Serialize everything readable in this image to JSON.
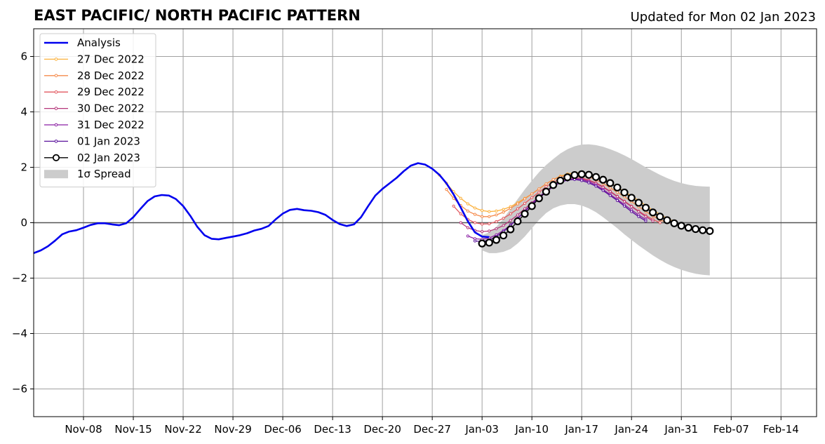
{
  "chart_data": {
    "type": "line",
    "title": "EAST PACIFIC/ NORTH PACIFIC PATTERN",
    "subtitle": "Updated for Mon 02 Jan 2023",
    "xlabel": "",
    "ylabel": "",
    "xlim": [
      "2022-11-01",
      "2023-02-19"
    ],
    "ylim": [
      -7,
      7
    ],
    "grid": true,
    "legend_position": "top-left",
    "x_ticks": [
      {
        "date": "2022-11-08",
        "label": "Nov-08"
      },
      {
        "date": "2022-11-15",
        "label": "Nov-15"
      },
      {
        "date": "2022-11-22",
        "label": "Nov-22"
      },
      {
        "date": "2022-11-29",
        "label": "Nov-29"
      },
      {
        "date": "2022-12-06",
        "label": "Dec-06"
      },
      {
        "date": "2022-12-13",
        "label": "Dec-13"
      },
      {
        "date": "2022-12-20",
        "label": "Dec-20"
      },
      {
        "date": "2022-12-27",
        "label": "Dec-27"
      },
      {
        "date": "2023-01-03",
        "label": "Jan-03"
      },
      {
        "date": "2023-01-10",
        "label": "Jan-10"
      },
      {
        "date": "2023-01-17",
        "label": "Jan-17"
      },
      {
        "date": "2023-01-24",
        "label": "Jan-24"
      },
      {
        "date": "2023-01-31",
        "label": "Jan-31"
      },
      {
        "date": "2023-02-07",
        "label": "Feb-07"
      },
      {
        "date": "2023-02-14",
        "label": "Feb-14"
      }
    ],
    "y_ticks": [
      {
        "value": 6,
        "label": "6"
      },
      {
        "value": 4,
        "label": "4"
      },
      {
        "value": 2,
        "label": "2"
      },
      {
        "value": 0,
        "label": "0"
      },
      {
        "value": -2,
        "label": "−2"
      },
      {
        "value": -4,
        "label": "−4"
      },
      {
        "value": -6,
        "label": "−6"
      }
    ],
    "analysis": {
      "name": "Analysis",
      "color": "#0000ee",
      "start_date": "2022-11-01",
      "values": [
        -1.1,
        -1.0,
        -0.85,
        -0.65,
        -0.42,
        -0.32,
        -0.27,
        -0.18,
        -0.08,
        -0.02,
        -0.02,
        -0.06,
        -0.09,
        -0.02,
        0.2,
        0.5,
        0.78,
        0.95,
        1.0,
        0.98,
        0.85,
        0.6,
        0.25,
        -0.15,
        -0.45,
        -0.58,
        -0.6,
        -0.55,
        -0.5,
        -0.45,
        -0.38,
        -0.28,
        -0.22,
        -0.12,
        0.12,
        0.33,
        0.46,
        0.5,
        0.45,
        0.43,
        0.38,
        0.28,
        0.1,
        -0.05,
        -0.12,
        -0.06,
        0.2,
        0.6,
        0.98,
        1.22,
        1.42,
        1.62,
        1.86,
        2.06,
        2.15,
        2.1,
        1.95,
        1.73,
        1.42,
        1.02,
        0.55,
        0.05,
        -0.35,
        -0.5,
        -0.52
      ]
    },
    "forecasts": [
      {
        "name": "27 Dec 2022",
        "color": "#fbb13c",
        "start_date": "2022-12-28",
        "values": [
          1.72,
          1.42,
          1.12,
          0.88,
          0.68,
          0.53,
          0.44,
          0.4,
          0.42,
          0.48,
          0.58,
          0.72,
          0.88,
          1.04,
          1.22,
          1.4,
          1.56,
          1.68,
          1.76,
          1.8,
          1.8,
          1.76,
          1.68,
          1.58,
          1.44,
          1.28,
          1.12,
          0.96,
          0.8,
          0.62,
          0.45,
          0.3,
          0.16,
          0.04
        ]
      },
      {
        "name": "28 Dec 2022",
        "color": "#f58b4c",
        "start_date": "2022-12-29",
        "values": [
          1.2,
          0.88,
          0.62,
          0.42,
          0.3,
          0.22,
          0.22,
          0.28,
          0.38,
          0.52,
          0.68,
          0.86,
          1.04,
          1.22,
          1.4,
          1.56,
          1.66,
          1.72,
          1.74,
          1.72,
          1.65,
          1.55,
          1.42,
          1.26,
          1.1,
          0.94,
          0.76,
          0.58,
          0.4,
          0.24,
          0.1,
          0.0
        ]
      },
      {
        "name": "29 Dec 2022",
        "color": "#e2585f",
        "start_date": "2022-12-30",
        "values": [
          0.6,
          0.32,
          0.12,
          0.0,
          -0.05,
          -0.04,
          0.04,
          0.16,
          0.32,
          0.5,
          0.7,
          0.9,
          1.1,
          1.3,
          1.46,
          1.58,
          1.64,
          1.66,
          1.62,
          1.54,
          1.44,
          1.3,
          1.14,
          0.96,
          0.78,
          0.6,
          0.42,
          0.26,
          0.12,
          0.0
        ]
      },
      {
        "name": "30 Dec 2022",
        "color": "#b5367a",
        "start_date": "2022-12-31",
        "values": [
          0.0,
          -0.18,
          -0.28,
          -0.32,
          -0.3,
          -0.22,
          -0.1,
          0.08,
          0.28,
          0.5,
          0.72,
          0.94,
          1.14,
          1.32,
          1.46,
          1.56,
          1.6,
          1.58,
          1.52,
          1.42,
          1.28,
          1.12,
          0.94,
          0.76,
          0.58,
          0.4,
          0.22,
          0.06
        ]
      },
      {
        "name": "31 Dec 2022",
        "color": "#8a1fa3",
        "start_date": "2023-01-01",
        "values": [
          -0.48,
          -0.58,
          -0.6,
          -0.55,
          -0.44,
          -0.28,
          -0.08,
          0.15,
          0.4,
          0.64,
          0.88,
          1.1,
          1.3,
          1.45,
          1.55,
          1.58,
          1.56,
          1.48,
          1.36,
          1.2,
          1.02,
          0.84,
          0.65,
          0.46,
          0.28,
          0.12
        ]
      },
      {
        "name": "01 Jan 2023",
        "color": "#5a129c",
        "start_date": "2023-01-02",
        "values": [
          -0.66,
          -0.68,
          -0.62,
          -0.5,
          -0.32,
          -0.1,
          0.16,
          0.42,
          0.68,
          0.92,
          1.14,
          1.32,
          1.46,
          1.54,
          1.56,
          1.52,
          1.44,
          1.32,
          1.16,
          0.98,
          0.8,
          0.6,
          0.4,
          0.22,
          0.06
        ]
      }
    ],
    "latest": {
      "name": "02 Jan 2023",
      "color": "#000000",
      "start_date": "2023-01-03",
      "values": [
        -0.75,
        -0.72,
        -0.62,
        -0.46,
        -0.24,
        0.05,
        0.32,
        0.6,
        0.88,
        1.12,
        1.36,
        1.52,
        1.64,
        1.72,
        1.75,
        1.73,
        1.65,
        1.55,
        1.43,
        1.27,
        1.09,
        0.9,
        0.72,
        0.54,
        0.37,
        0.22,
        0.09,
        -0.02,
        -0.11,
        -0.18,
        -0.23,
        -0.27,
        -0.3
      ]
    },
    "spread": {
      "name": "1σ Spread",
      "color": "#cccccc",
      "start_date": "2023-01-03",
      "upper": [
        -0.45,
        -0.35,
        -0.15,
        0.15,
        0.5,
        0.85,
        1.2,
        1.52,
        1.82,
        2.08,
        2.3,
        2.5,
        2.65,
        2.76,
        2.82,
        2.83,
        2.8,
        2.74,
        2.65,
        2.55,
        2.43,
        2.3,
        2.15,
        2.0,
        1.86,
        1.73,
        1.61,
        1.51,
        1.43,
        1.37,
        1.33,
        1.31,
        1.3
      ],
      "lower": [
        -1.0,
        -1.1,
        -1.1,
        -1.05,
        -0.95,
        -0.75,
        -0.5,
        -0.2,
        0.1,
        0.35,
        0.52,
        0.62,
        0.67,
        0.67,
        0.62,
        0.52,
        0.38,
        0.2,
        0.0,
        -0.2,
        -0.42,
        -0.62,
        -0.82,
        -1.0,
        -1.18,
        -1.34,
        -1.48,
        -1.6,
        -1.7,
        -1.78,
        -1.84,
        -1.88,
        -1.9
      ]
    }
  }
}
